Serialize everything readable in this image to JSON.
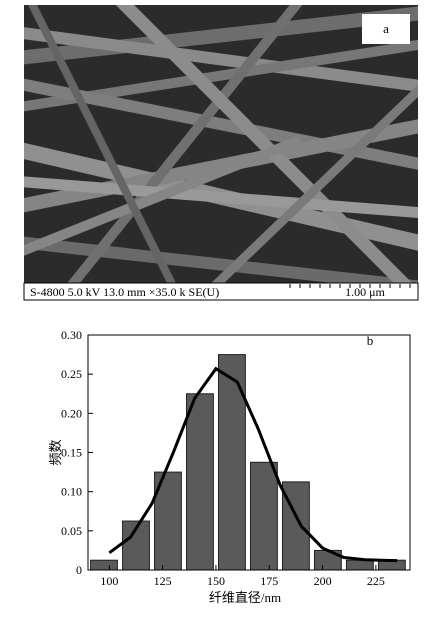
{
  "sem_image": {
    "label": "a",
    "info": "S-4800 5.0 kV 13.0 mm ×35.0 k SE(U)",
    "scale": "1.00 μm"
  },
  "chart_data": {
    "type": "histogram",
    "label": "b",
    "x_label": "纤维直径/nm",
    "y_label": "频数",
    "bins": [
      90,
      105,
      120,
      135,
      150,
      165,
      180,
      195,
      210,
      225,
      240
    ],
    "values": [
      0.0125,
      0.0625,
      0.125,
      0.225,
      0.275,
      0.1375,
      0.1125,
      0.025,
      0.0125,
      0.0125
    ],
    "color": "#5a5a5a",
    "curve": {
      "color": "#000000",
      "x": [
        100,
        110,
        120,
        130,
        140,
        150,
        160,
        170,
        180,
        190,
        200,
        210,
        220,
        235
      ],
      "values": [
        0.022,
        0.042,
        0.085,
        0.15,
        0.219,
        0.257,
        0.24,
        0.179,
        0.109,
        0.056,
        0.028,
        0.016,
        0.013,
        0.012
      ]
    },
    "xlim": [
      90,
      241
    ],
    "ylim": [
      0,
      0.3
    ],
    "xticks": [
      100,
      125,
      150,
      175,
      200,
      225
    ],
    "yticks": [
      0,
      0.05,
      {
        "value": 0.1,
        "label": "0.10"
      },
      0.15,
      {
        "value": 0.2,
        "label": "0.20"
      },
      0.25,
      {
        "value": 0.3,
        "label": "0.30"
      }
    ]
  }
}
